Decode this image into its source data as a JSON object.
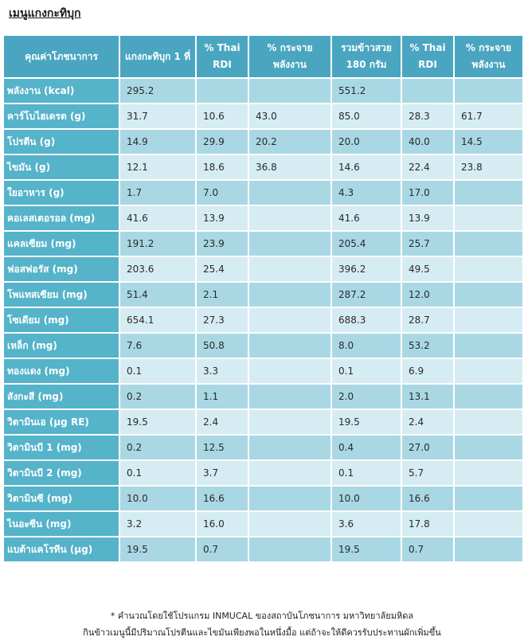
{
  "title": "เมนูแกงกะทิบุก",
  "headers": [
    "คุณค่าโภชนาการ",
    "แกงกะทิบุก 1 ที่",
    "% Thai RDI",
    "% กระจาย พลังงาน",
    "รวมข้าวสวย 180 กรัม",
    "% Thai RDI",
    "% กระจาย พลังงาน"
  ],
  "rows": [
    {
      "label": "พลังงาน (kcal)",
      "v1": "295.2",
      "v2": "",
      "v3": "",
      "v4": "551.2",
      "v5": "",
      "v6": ""
    },
    {
      "label": "คาร์โบไฮเดรต (g)",
      "v1": "31.7",
      "v2": "10.6",
      "v3": "43.0",
      "v4": "85.0",
      "v5": "28.3",
      "v6": "61.7"
    },
    {
      "label": "โปรตีน (g)",
      "v1": "14.9",
      "v2": "29.9",
      "v3": "20.2",
      "v4": "20.0",
      "v5": "40.0",
      "v6": "14.5"
    },
    {
      "label": "ไขมัน (g)",
      "v1": "12.1",
      "v2": "18.6",
      "v3": "36.8",
      "v4": "14.6",
      "v5": "22.4",
      "v6": "23.8"
    },
    {
      "label": "ใยอาหาร (g)",
      "v1": "1.7",
      "v2": "7.0",
      "v3": "",
      "v4": "4.3",
      "v5": "17.0",
      "v6": ""
    },
    {
      "label": "คอเลสเตอรอล (mg)",
      "v1": "41.6",
      "v2": "13.9",
      "v3": "",
      "v4": "41.6",
      "v5": "13.9",
      "v6": ""
    },
    {
      "label": "แคลเซียม (mg)",
      "v1": "191.2",
      "v2": "23.9",
      "v3": "",
      "v4": "205.4",
      "v5": "25.7",
      "v6": ""
    },
    {
      "label": "ฟอสฟอรัส (mg)",
      "v1": "203.6",
      "v2": "25.4",
      "v3": "",
      "v4": "396.2",
      "v5": "49.5",
      "v6": ""
    },
    {
      "label": "โพแทสเซียม (mg)",
      "v1": "51.4",
      "v2": "2.1",
      "v3": "",
      "v4": "287.2",
      "v5": "12.0",
      "v6": ""
    },
    {
      "label": "โซเดียม (mg)",
      "v1": "654.1",
      "v2": "27.3",
      "v3": "",
      "v4": "688.3",
      "v5": "28.7",
      "v6": ""
    },
    {
      "label": "เหล็ก (mg)",
      "v1": "7.6",
      "v2": "50.8",
      "v3": "",
      "v4": "8.0",
      "v5": "53.2",
      "v6": ""
    },
    {
      "label": "ทองแดง (mg)",
      "v1": "0.1",
      "v2": "3.3",
      "v3": "",
      "v4": "0.1",
      "v5": "6.9",
      "v6": ""
    },
    {
      "label": "สังกะสี (mg)",
      "v1": "0.2",
      "v2": "1.1",
      "v3": "",
      "v4": "2.0",
      "v5": "13.1",
      "v6": ""
    },
    {
      "label": "วิตามินเอ (µg RE)",
      "v1": "19.5",
      "v2": "2.4",
      "v3": "",
      "v4": "19.5",
      "v5": "2.4",
      "v6": ""
    },
    {
      "label": "วิตามินบี 1 (mg)",
      "v1": "0.2",
      "v2": "12.5",
      "v3": "",
      "v4": "0.4",
      "v5": "27.0",
      "v6": ""
    },
    {
      "label": "วิตามินบี 2 (mg)",
      "v1": "0.1",
      "v2": "3.7",
      "v3": "",
      "v4": "0.1",
      "v5": "5.7",
      "v6": ""
    },
    {
      "label": "วิตามินซี (mg)",
      "v1": "10.0",
      "v2": "16.6",
      "v3": "",
      "v4": "10.0",
      "v5": "16.6",
      "v6": ""
    },
    {
      "label": "ไนอะซีน (mg)",
      "v1": "3.2",
      "v2": "16.0",
      "v3": "",
      "v4": "3.6",
      "v5": "17.8",
      "v6": ""
    },
    {
      "label": "แบต้าแคโรทีน (µg)",
      "v1": "19.5",
      "v2": "0.7",
      "v3": "",
      "v4": "19.5",
      "v5": "0.7",
      "v6": ""
    }
  ],
  "footnotes": [
    "* คำนวณโดยใช้โปรแกรม INMUCAL ของสถาบันโภชนาการ มหาวิทยาลัยมหิดล",
    "กินข้าวเมนูนี้มีปริมาณโปรตีนและไขมันเพียงพอในหนึ่งมื้อ แต่ถ้าจะให้ดีควรรับประทานผักเพิ่มขึ้น"
  ]
}
